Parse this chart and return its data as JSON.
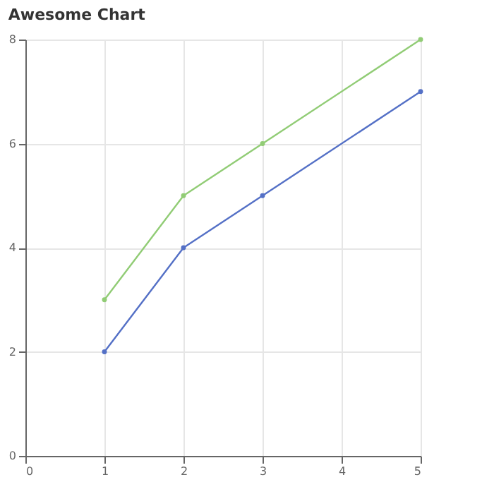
{
  "chart_data": {
    "type": "line",
    "title": "Awesome Chart",
    "xlim": [
      0,
      5
    ],
    "xticks": [
      0,
      1,
      2,
      3,
      4,
      5
    ],
    "ylim": [
      0,
      8
    ],
    "yticks": [
      0,
      2,
      4,
      6,
      8
    ],
    "grid": true,
    "marker": "circle",
    "line_style": "solid",
    "series": [
      {
        "color": "#5470c6",
        "x": [
          1,
          2,
          3,
          5
        ],
        "values": [
          2,
          4,
          5,
          7
        ]
      },
      {
        "color": "#91cc75",
        "x": [
          1,
          2,
          3,
          5
        ],
        "values": [
          3,
          5,
          6,
          8
        ]
      }
    ]
  }
}
